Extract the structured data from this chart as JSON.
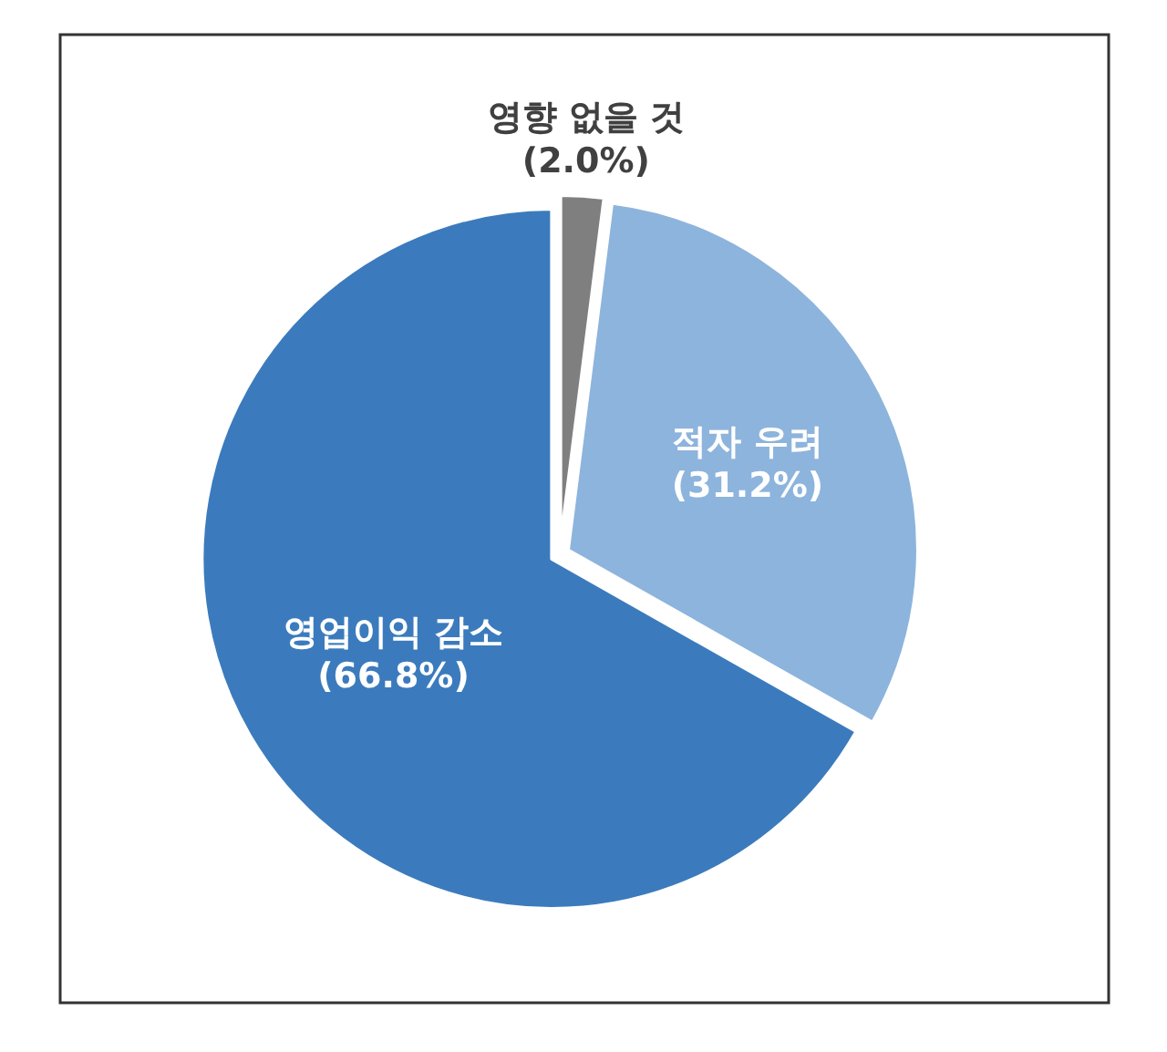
{
  "chart_data": {
    "type": "pie",
    "categories": [
      "영향 없을 것",
      "적자 우려",
      "영업이익 감소"
    ],
    "values": [
      2.0,
      31.2,
      66.8
    ],
    "colors": [
      "#7f7f7f",
      "#8db4dc",
      "#3b7bbd"
    ],
    "value_labels": [
      "(2.0%)",
      "(31.2%)",
      "(66.8%)"
    ]
  }
}
